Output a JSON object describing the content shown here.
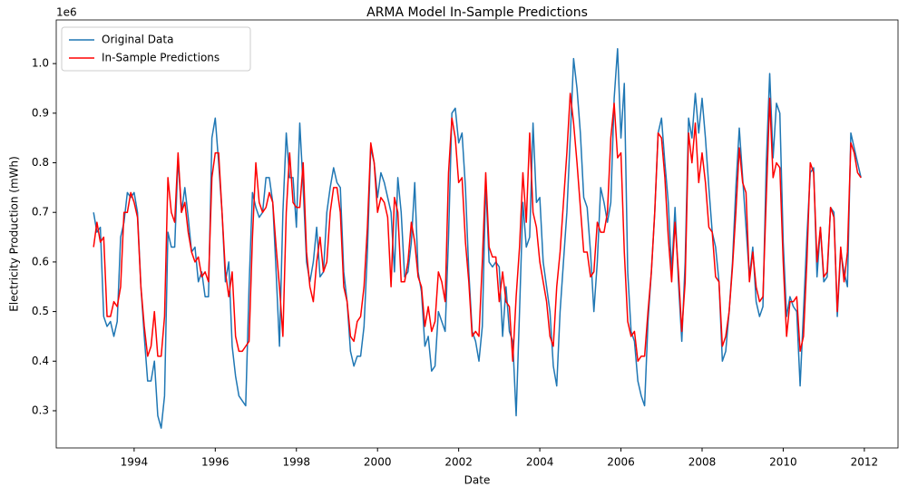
{
  "chart_data": {
    "type": "line",
    "title": "ARMA Model In-Sample Predictions",
    "x_label": "Date",
    "y_label": "Electricity Production (mWh)",
    "y_offset_label": "1e6",
    "x": [
      1993,
      1993.083,
      1993.167,
      1993.25,
      1993.333,
      1993.417,
      1993.5,
      1993.583,
      1993.667,
      1993.75,
      1993.833,
      1993.917,
      1994,
      1994.083,
      1994.167,
      1994.25,
      1994.333,
      1994.417,
      1994.5,
      1994.583,
      1994.667,
      1994.75,
      1994.833,
      1994.917,
      1995,
      1995.083,
      1995.167,
      1995.25,
      1995.333,
      1995.417,
      1995.5,
      1995.583,
      1995.667,
      1995.75,
      1995.833,
      1995.917,
      1996,
      1996.083,
      1996.167,
      1996.25,
      1996.333,
      1996.417,
      1996.5,
      1996.583,
      1996.667,
      1996.75,
      1996.833,
      1996.917,
      1997,
      1997.083,
      1997.167,
      1997.25,
      1997.333,
      1997.417,
      1997.5,
      1997.583,
      1997.667,
      1997.75,
      1997.833,
      1997.917,
      1998,
      1998.083,
      1998.167,
      1998.25,
      1998.333,
      1998.417,
      1998.5,
      1998.583,
      1998.667,
      1998.75,
      1998.833,
      1998.917,
      1999,
      1999.083,
      1999.167,
      1999.25,
      1999.333,
      1999.417,
      1999.5,
      1999.583,
      1999.667,
      1999.75,
      1999.833,
      1999.917,
      2000,
      2000.083,
      2000.167,
      2000.25,
      2000.333,
      2000.417,
      2000.5,
      2000.583,
      2000.667,
      2000.75,
      2000.833,
      2000.917,
      2001,
      2001.083,
      2001.167,
      2001.25,
      2001.333,
      2001.417,
      2001.5,
      2001.583,
      2001.667,
      2001.75,
      2001.833,
      2001.917,
      2002,
      2002.083,
      2002.167,
      2002.25,
      2002.333,
      2002.417,
      2002.5,
      2002.583,
      2002.667,
      2002.75,
      2002.833,
      2002.917,
      2003,
      2003.083,
      2003.167,
      2003.25,
      2003.333,
      2003.417,
      2003.5,
      2003.583,
      2003.667,
      2003.75,
      2003.833,
      2003.917,
      2004,
      2004.083,
      2004.167,
      2004.25,
      2004.333,
      2004.417,
      2004.5,
      2004.583,
      2004.667,
      2004.75,
      2004.833,
      2004.917,
      2005,
      2005.083,
      2005.167,
      2005.25,
      2005.333,
      2005.417,
      2005.5,
      2005.583,
      2005.667,
      2005.75,
      2005.833,
      2005.917,
      2006,
      2006.083,
      2006.167,
      2006.25,
      2006.333,
      2006.417,
      2006.5,
      2006.583,
      2006.667,
      2006.75,
      2006.833,
      2006.917,
      2007,
      2007.083,
      2007.167,
      2007.25,
      2007.333,
      2007.417,
      2007.5,
      2007.583,
      2007.667,
      2007.75,
      2007.833,
      2007.917,
      2008,
      2008.083,
      2008.167,
      2008.25,
      2008.333,
      2008.417,
      2008.5,
      2008.583,
      2008.667,
      2008.75,
      2008.833,
      2008.917,
      2009,
      2009.083,
      2009.167,
      2009.25,
      2009.333,
      2009.417,
      2009.5,
      2009.583,
      2009.667,
      2009.75,
      2009.833,
      2009.917,
      2010,
      2010.083,
      2010.167,
      2010.25,
      2010.333,
      2010.417,
      2010.5,
      2010.583,
      2010.667,
      2010.75,
      2010.833,
      2010.917,
      2011,
      2011.083,
      2011.167,
      2011.25,
      2011.333,
      2011.417,
      2011.5,
      2011.583,
      2011.667,
      2011.75,
      2011.833,
      2011.917
    ],
    "series": [
      {
        "name": "Original Data",
        "color": "#1f77b4",
        "values": [
          0.7,
          0.66,
          0.67,
          0.49,
          0.47,
          0.48,
          0.45,
          0.48,
          0.65,
          0.68,
          0.74,
          0.73,
          0.74,
          0.7,
          0.55,
          0.45,
          0.36,
          0.36,
          0.4,
          0.29,
          0.265,
          0.33,
          0.66,
          0.63,
          0.63,
          0.81,
          0.7,
          0.75,
          0.69,
          0.62,
          0.63,
          0.56,
          0.58,
          0.53,
          0.53,
          0.85,
          0.89,
          0.8,
          0.7,
          0.56,
          0.6,
          0.43,
          0.37,
          0.33,
          0.32,
          0.31,
          0.55,
          0.74,
          0.71,
          0.69,
          0.7,
          0.77,
          0.77,
          0.72,
          0.58,
          0.43,
          0.7,
          0.86,
          0.77,
          0.77,
          0.67,
          0.88,
          0.75,
          0.6,
          0.56,
          0.6,
          0.67,
          0.57,
          0.58,
          0.7,
          0.75,
          0.79,
          0.76,
          0.75,
          0.58,
          0.52,
          0.42,
          0.39,
          0.41,
          0.41,
          0.47,
          0.62,
          0.83,
          0.8,
          0.73,
          0.78,
          0.76,
          0.73,
          0.7,
          0.58,
          0.77,
          0.7,
          0.57,
          0.58,
          0.64,
          0.76,
          0.58,
          0.54,
          0.43,
          0.45,
          0.38,
          0.39,
          0.5,
          0.48,
          0.46,
          0.65,
          0.9,
          0.91,
          0.84,
          0.86,
          0.75,
          0.58,
          0.46,
          0.44,
          0.4,
          0.47,
          0.76,
          0.6,
          0.59,
          0.6,
          0.59,
          0.45,
          0.55,
          0.46,
          0.44,
          0.29,
          0.5,
          0.72,
          0.63,
          0.65,
          0.88,
          0.72,
          0.73,
          0.6,
          0.55,
          0.5,
          0.39,
          0.35,
          0.5,
          0.6,
          0.7,
          0.85,
          1.01,
          0.95,
          0.86,
          0.73,
          0.71,
          0.62,
          0.5,
          0.6,
          0.75,
          0.72,
          0.68,
          0.72,
          0.93,
          1.03,
          0.85,
          0.96,
          0.58,
          0.46,
          0.44,
          0.36,
          0.33,
          0.31,
          0.48,
          0.58,
          0.7,
          0.86,
          0.89,
          0.8,
          0.72,
          0.58,
          0.71,
          0.56,
          0.44,
          0.6,
          0.89,
          0.85,
          0.94,
          0.86,
          0.93,
          0.85,
          0.75,
          0.66,
          0.63,
          0.56,
          0.4,
          0.42,
          0.5,
          0.6,
          0.75,
          0.87,
          0.77,
          0.67,
          0.57,
          0.63,
          0.52,
          0.49,
          0.51,
          0.8,
          0.98,
          0.81,
          0.92,
          0.9,
          0.64,
          0.49,
          0.53,
          0.51,
          0.5,
          0.35,
          0.5,
          0.65,
          0.78,
          0.79,
          0.57,
          0.67,
          0.56,
          0.57,
          0.71,
          0.7,
          0.49,
          0.62,
          0.58,
          0.55,
          0.86,
          0.83,
          0.8,
          0.77
        ]
      },
      {
        "name": "In-Sample Predictions",
        "color": "#ff0000",
        "values": [
          0.63,
          0.68,
          0.64,
          0.65,
          0.49,
          0.49,
          0.52,
          0.51,
          0.55,
          0.7,
          0.7,
          0.74,
          0.72,
          0.69,
          0.55,
          0.47,
          0.41,
          0.43,
          0.5,
          0.41,
          0.41,
          0.49,
          0.77,
          0.7,
          0.68,
          0.82,
          0.7,
          0.72,
          0.66,
          0.62,
          0.6,
          0.61,
          0.57,
          0.58,
          0.56,
          0.77,
          0.82,
          0.82,
          0.7,
          0.58,
          0.53,
          0.58,
          0.45,
          0.42,
          0.42,
          0.43,
          0.44,
          0.65,
          0.8,
          0.72,
          0.7,
          0.71,
          0.74,
          0.72,
          0.63,
          0.55,
          0.45,
          0.7,
          0.82,
          0.72,
          0.71,
          0.71,
          0.8,
          0.62,
          0.55,
          0.52,
          0.6,
          0.65,
          0.58,
          0.6,
          0.7,
          0.75,
          0.75,
          0.7,
          0.55,
          0.52,
          0.45,
          0.44,
          0.48,
          0.49,
          0.55,
          0.67,
          0.84,
          0.8,
          0.7,
          0.73,
          0.72,
          0.69,
          0.55,
          0.73,
          0.7,
          0.56,
          0.56,
          0.6,
          0.68,
          0.64,
          0.57,
          0.55,
          0.47,
          0.51,
          0.46,
          0.48,
          0.58,
          0.56,
          0.52,
          0.78,
          0.89,
          0.85,
          0.76,
          0.77,
          0.64,
          0.56,
          0.45,
          0.46,
          0.45,
          0.6,
          0.78,
          0.63,
          0.61,
          0.61,
          0.52,
          0.58,
          0.52,
          0.51,
          0.4,
          0.53,
          0.63,
          0.78,
          0.68,
          0.86,
          0.7,
          0.67,
          0.6,
          0.56,
          0.52,
          0.45,
          0.43,
          0.55,
          0.62,
          0.72,
          0.82,
          0.94,
          0.88,
          0.8,
          0.71,
          0.62,
          0.62,
          0.57,
          0.58,
          0.68,
          0.66,
          0.66,
          0.7,
          0.85,
          0.92,
          0.81,
          0.82,
          0.62,
          0.48,
          0.45,
          0.46,
          0.4,
          0.41,
          0.41,
          0.5,
          0.58,
          0.7,
          0.86,
          0.85,
          0.77,
          0.65,
          0.56,
          0.68,
          0.58,
          0.46,
          0.56,
          0.86,
          0.8,
          0.88,
          0.76,
          0.82,
          0.76,
          0.67,
          0.66,
          0.57,
          0.56,
          0.43,
          0.45,
          0.5,
          0.59,
          0.7,
          0.83,
          0.76,
          0.74,
          0.56,
          0.62,
          0.55,
          0.52,
          0.53,
          0.73,
          0.93,
          0.77,
          0.8,
          0.79,
          0.6,
          0.45,
          0.52,
          0.52,
          0.53,
          0.42,
          0.45,
          0.6,
          0.8,
          0.78,
          0.6,
          0.67,
          0.57,
          0.58,
          0.71,
          0.69,
          0.5,
          0.63,
          0.56,
          0.62,
          0.84,
          0.82,
          0.78,
          0.77
        ]
      }
    ],
    "xlim": [
      1992.08,
      2012.83
    ],
    "xticks": [
      1994,
      1996,
      1998,
      2000,
      2002,
      2004,
      2006,
      2008,
      2010,
      2012
    ],
    "ylim": [
      0.225,
      1.088
    ],
    "yticks": [
      0.3,
      0.4,
      0.5,
      0.6,
      0.7,
      0.8,
      0.9,
      {
        "value": 1,
        "label": "1.0"
      }
    ],
    "grid": false,
    "legend": "upper left"
  }
}
